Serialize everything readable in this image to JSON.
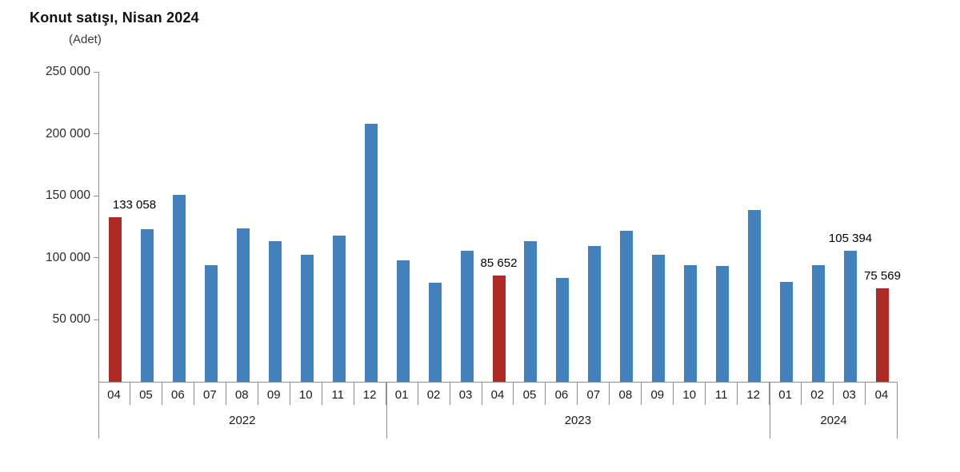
{
  "header": {
    "title": "Konut satışı, Nisan 2024",
    "unit_label": "(Adet)"
  },
  "colors": {
    "bar_blue": "#4381BD",
    "bar_red": "#AE2A25",
    "axis_gray": "#8F8F8F"
  },
  "chart_data": {
    "type": "bar",
    "title": "Konut satışı, Nisan 2024",
    "ylabel": "(Adet)",
    "xlabel": "",
    "ylim": [
      0,
      250000
    ],
    "grid": false,
    "legend": "none",
    "yticks": [
      {
        "label": "250 000",
        "value": 250000
      },
      {
        "label": "200 000",
        "value": 200000
      },
      {
        "label": "150 000",
        "value": 150000
      },
      {
        "label": "100 000",
        "value": 100000
      },
      {
        "label": "50 000",
        "value": 50000
      }
    ],
    "groups": [
      {
        "year": "2022",
        "months": [
          "04",
          "05",
          "06",
          "07",
          "08",
          "09",
          "10",
          "11",
          "12"
        ]
      },
      {
        "year": "2023",
        "months": [
          "01",
          "02",
          "03",
          "04",
          "05",
          "06",
          "07",
          "08",
          "09",
          "10",
          "11",
          "12"
        ]
      },
      {
        "year": "2024",
        "months": [
          "01",
          "02",
          "03",
          "04"
        ]
      }
    ],
    "bars": [
      {
        "year": "2022",
        "month": "04",
        "value": 133058,
        "highlight": true,
        "label": "133 058"
      },
      {
        "year": "2022",
        "month": "05",
        "value": 122768,
        "highlight": false,
        "label": ""
      },
      {
        "year": "2022",
        "month": "06",
        "value": 150509,
        "highlight": false,
        "label": ""
      },
      {
        "year": "2022",
        "month": "07",
        "value": 93902,
        "highlight": false,
        "label": ""
      },
      {
        "year": "2022",
        "month": "08",
        "value": 123491,
        "highlight": false,
        "label": ""
      },
      {
        "year": "2022",
        "month": "09",
        "value": 113402,
        "highlight": false,
        "label": ""
      },
      {
        "year": "2022",
        "month": "10",
        "value": 102660,
        "highlight": false,
        "label": ""
      },
      {
        "year": "2022",
        "month": "11",
        "value": 117806,
        "highlight": false,
        "label": ""
      },
      {
        "year": "2022",
        "month": "12",
        "value": 207963,
        "highlight": false,
        "label": ""
      },
      {
        "year": "2023",
        "month": "01",
        "value": 97708,
        "highlight": false,
        "label": ""
      },
      {
        "year": "2023",
        "month": "02",
        "value": 80031,
        "highlight": false,
        "label": ""
      },
      {
        "year": "2023",
        "month": "03",
        "value": 105476,
        "highlight": false,
        "label": ""
      },
      {
        "year": "2023",
        "month": "04",
        "value": 85652,
        "highlight": true,
        "label": "85 652"
      },
      {
        "year": "2023",
        "month": "05",
        "value": 113392,
        "highlight": false,
        "label": ""
      },
      {
        "year": "2023",
        "month": "06",
        "value": 83636,
        "highlight": false,
        "label": ""
      },
      {
        "year": "2023",
        "month": "07",
        "value": 109548,
        "highlight": false,
        "label": ""
      },
      {
        "year": "2023",
        "month": "08",
        "value": 122091,
        "highlight": false,
        "label": ""
      },
      {
        "year": "2023",
        "month": "09",
        "value": 102656,
        "highlight": false,
        "label": ""
      },
      {
        "year": "2023",
        "month": "10",
        "value": 93761,
        "highlight": false,
        "label": ""
      },
      {
        "year": "2023",
        "month": "11",
        "value": 93514,
        "highlight": false,
        "label": ""
      },
      {
        "year": "2023",
        "month": "12",
        "value": 138577,
        "highlight": false,
        "label": ""
      },
      {
        "year": "2024",
        "month": "01",
        "value": 80308,
        "highlight": false,
        "label": ""
      },
      {
        "year": "2024",
        "month": "02",
        "value": 93902,
        "highlight": false,
        "label": ""
      },
      {
        "year": "2024",
        "month": "03",
        "value": 105394,
        "highlight": false,
        "label": "105 394"
      },
      {
        "year": "2024",
        "month": "04",
        "value": 75569,
        "highlight": true,
        "label": "75 569"
      }
    ]
  }
}
